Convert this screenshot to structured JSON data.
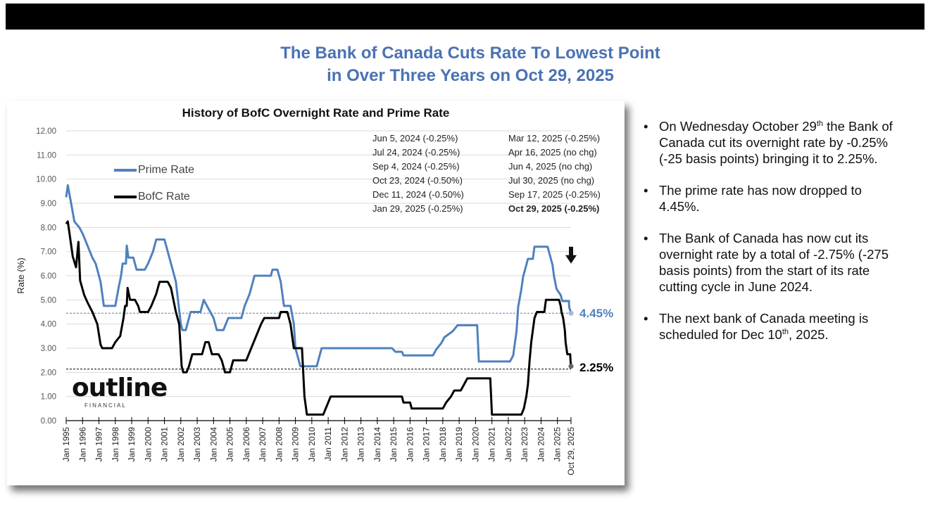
{
  "header": {
    "title_line1": "The Bank of Canada Cuts Rate To Lowest Point",
    "title_line2": "in Over Three Years on Oct 29, 2025"
  },
  "colors": {
    "title": "#4a72b5",
    "prime": "#4f81bd",
    "bofc": "#000000"
  },
  "logo": {
    "word": "outline",
    "sub": "FINANCIAL"
  },
  "annotations": {
    "left": [
      "Jun 5, 2024 (-0.25%)",
      "Jul 24, 2024 (-0.25%)",
      "Sep 4, 2024 (-0.25%)",
      "Oct 23, 2024 (-0.50%)",
      "Dec 11, 2024 (-0.50%)",
      "Jan 29, 2025 (-0.25%)"
    ],
    "right": [
      "Mar 12, 2025 (-0.25%)",
      "Apr 16, 2025 (no chg)",
      "Jun 4, 2025 (no chg)",
      "Jul 30, 2025 (no chg)",
      "Sep 17, 2025 (-0.25%)",
      "Oct 29, 2025 (-0.25%)"
    ]
  },
  "bullets": [
    {
      "pre": "On Wednesday October 29",
      "sup": "th",
      "post": " the Bank of Canada cut its overnight rate by -0.25% (-25 basis points) bringing it to 2.25%."
    },
    {
      "pre": "The prime rate has now dropped to 4.45%."
    },
    {
      "pre": "The Bank of Canada has now cut its overnight rate by a total of -2.75% (-275 basis points) from the start of its rate cutting cycle in June 2024."
    },
    {
      "pre": "The next bank of Canada meeting is scheduled for Dec 10",
      "sup": "th",
      "post": ", 2025."
    }
  ],
  "chart_data": {
    "type": "line",
    "title": "History of BofC Overnight Rate and Prime Rate",
    "ylabel": "Rate (%)",
    "xlabel": "",
    "ylim": [
      0,
      12
    ],
    "xlim": [
      1995.0,
      2025.83
    ],
    "grid": true,
    "legend": "top-left",
    "y_ticks": [
      "0.00",
      "1.00",
      "2.00",
      "3.00",
      "4.00",
      "5.00",
      "6.00",
      "7.00",
      "8.00",
      "9.00",
      "10.00",
      "11.00",
      "12.00"
    ],
    "x_ticks": [
      "Jan 1995",
      "Jan 1996",
      "Jan 1997",
      "Jan 1998",
      "Jan 1999",
      "Jan 2000",
      "Jan 2001",
      "Jan 2002",
      "Jan 2003",
      "Jan 2004",
      "Jan 2005",
      "Jan 2006",
      "Jan 2007",
      "Jan 2008",
      "Jan 2009",
      "Jan 2010",
      "Jan 2011",
      "Jan 2012",
      "Jan 2013",
      "Jan 2014",
      "Jan 2015",
      "Jan 2016",
      "Jan 2017",
      "Jan 2018",
      "Jan 2019",
      "Jan 2020",
      "Jan 2021",
      "Jan 2022",
      "Jan 2023",
      "Jan 2024",
      "Jan 2025",
      "Oct 29, 2025"
    ],
    "reference_lines": [
      {
        "value": 4.45,
        "label": "4.45%",
        "series": "Prime Rate"
      },
      {
        "value": 2.25,
        "label": "2.25%",
        "series": "BofC Rate"
      }
    ],
    "series": [
      {
        "name": "Prime Rate",
        "points": [
          [
            1995.0,
            9.25
          ],
          [
            1995.1,
            9.75
          ],
          [
            1995.3,
            9.0
          ],
          [
            1995.5,
            8.25
          ],
          [
            1995.8,
            8.0
          ],
          [
            1996.0,
            7.75
          ],
          [
            1996.3,
            7.25
          ],
          [
            1996.6,
            6.75
          ],
          [
            1996.8,
            6.5
          ],
          [
            1997.0,
            6.0
          ],
          [
            1997.1,
            5.75
          ],
          [
            1997.3,
            4.75
          ],
          [
            1998.0,
            4.75
          ],
          [
            1998.2,
            5.5
          ],
          [
            1998.35,
            6.0
          ],
          [
            1998.45,
            6.5
          ],
          [
            1998.65,
            6.5
          ],
          [
            1998.7,
            7.25
          ],
          [
            1998.8,
            6.75
          ],
          [
            1999.1,
            6.75
          ],
          [
            1999.3,
            6.25
          ],
          [
            1999.8,
            6.25
          ],
          [
            2000.0,
            6.5
          ],
          [
            2000.3,
            7.0
          ],
          [
            2000.5,
            7.5
          ],
          [
            2001.0,
            7.5
          ],
          [
            2001.1,
            7.25
          ],
          [
            2001.5,
            6.25
          ],
          [
            2001.7,
            5.75
          ],
          [
            2002.0,
            4.0
          ],
          [
            2002.1,
            3.75
          ],
          [
            2002.3,
            3.75
          ],
          [
            2002.4,
            4.0
          ],
          [
            2002.6,
            4.5
          ],
          [
            2003.2,
            4.5
          ],
          [
            2003.4,
            5.0
          ],
          [
            2003.6,
            4.75
          ],
          [
            2003.8,
            4.5
          ],
          [
            2004.0,
            4.25
          ],
          [
            2004.2,
            3.75
          ],
          [
            2004.6,
            3.75
          ],
          [
            2004.9,
            4.25
          ],
          [
            2005.7,
            4.25
          ],
          [
            2005.9,
            4.75
          ],
          [
            2006.2,
            5.25
          ],
          [
            2006.5,
            6.0
          ],
          [
            2007.5,
            6.0
          ],
          [
            2007.6,
            6.25
          ],
          [
            2007.9,
            6.25
          ],
          [
            2008.1,
            5.75
          ],
          [
            2008.3,
            4.75
          ],
          [
            2008.7,
            4.75
          ],
          [
            2008.9,
            4.0
          ],
          [
            2009.0,
            3.0
          ],
          [
            2009.3,
            2.25
          ],
          [
            2010.3,
            2.25
          ],
          [
            2010.6,
            3.0
          ],
          [
            2014.9,
            3.0
          ],
          [
            2015.1,
            2.85
          ],
          [
            2015.5,
            2.85
          ],
          [
            2015.6,
            2.7
          ],
          [
            2017.4,
            2.7
          ],
          [
            2017.6,
            2.95
          ],
          [
            2017.9,
            3.2
          ],
          [
            2018.1,
            3.45
          ],
          [
            2018.6,
            3.7
          ],
          [
            2018.9,
            3.95
          ],
          [
            2020.1,
            3.95
          ],
          [
            2020.2,
            2.45
          ],
          [
            2022.1,
            2.45
          ],
          [
            2022.3,
            2.7
          ],
          [
            2022.4,
            3.2
          ],
          [
            2022.5,
            3.7
          ],
          [
            2022.6,
            4.7
          ],
          [
            2022.8,
            5.45
          ],
          [
            2022.9,
            5.95
          ],
          [
            2023.1,
            6.45
          ],
          [
            2023.2,
            6.7
          ],
          [
            2023.5,
            6.7
          ],
          [
            2023.6,
            7.2
          ],
          [
            2024.4,
            7.2
          ],
          [
            2024.5,
            6.95
          ],
          [
            2024.6,
            6.7
          ],
          [
            2024.7,
            6.45
          ],
          [
            2024.8,
            5.95
          ],
          [
            2024.95,
            5.45
          ],
          [
            2025.2,
            5.2
          ],
          [
            2025.3,
            4.95
          ],
          [
            2025.7,
            4.95
          ],
          [
            2025.72,
            4.7
          ],
          [
            2025.83,
            4.45
          ]
        ]
      },
      {
        "name": "BofC Rate",
        "points": [
          [
            1995.0,
            8.15
          ],
          [
            1995.1,
            8.25
          ],
          [
            1995.4,
            6.8
          ],
          [
            1995.6,
            6.35
          ],
          [
            1995.75,
            7.4
          ],
          [
            1995.85,
            5.8
          ],
          [
            1996.1,
            5.2
          ],
          [
            1996.3,
            4.9
          ],
          [
            1996.6,
            4.5
          ],
          [
            1996.9,
            4.0
          ],
          [
            1997.1,
            3.15
          ],
          [
            1997.2,
            3.0
          ],
          [
            1997.8,
            3.0
          ],
          [
            1998.0,
            3.25
          ],
          [
            1998.3,
            3.5
          ],
          [
            1998.5,
            4.25
          ],
          [
            1998.6,
            4.75
          ],
          [
            1998.7,
            4.75
          ],
          [
            1998.75,
            5.5
          ],
          [
            1998.9,
            5.0
          ],
          [
            1999.2,
            5.0
          ],
          [
            1999.4,
            4.75
          ],
          [
            1999.5,
            4.5
          ],
          [
            2000.0,
            4.5
          ],
          [
            2000.2,
            4.75
          ],
          [
            2000.5,
            5.25
          ],
          [
            2000.7,
            5.75
          ],
          [
            2001.2,
            5.75
          ],
          [
            2001.4,
            5.5
          ],
          [
            2001.7,
            4.5
          ],
          [
            2001.9,
            4.0
          ],
          [
            2002.05,
            2.25
          ],
          [
            2002.15,
            2.0
          ],
          [
            2002.35,
            2.0
          ],
          [
            2002.5,
            2.25
          ],
          [
            2002.7,
            2.75
          ],
          [
            2003.3,
            2.75
          ],
          [
            2003.5,
            3.25
          ],
          [
            2003.7,
            3.25
          ],
          [
            2003.9,
            2.75
          ],
          [
            2004.3,
            2.75
          ],
          [
            2004.5,
            2.5
          ],
          [
            2004.7,
            2.0
          ],
          [
            2005.0,
            2.0
          ],
          [
            2005.2,
            2.5
          ],
          [
            2006.0,
            2.5
          ],
          [
            2006.3,
            3.0
          ],
          [
            2006.6,
            3.5
          ],
          [
            2006.9,
            4.0
          ],
          [
            2007.1,
            4.25
          ],
          [
            2008.0,
            4.25
          ],
          [
            2008.1,
            4.5
          ],
          [
            2008.5,
            4.5
          ],
          [
            2008.7,
            4.0
          ],
          [
            2008.9,
            3.0
          ],
          [
            2009.4,
            3.0
          ],
          [
            2009.55,
            1.0
          ],
          [
            2009.7,
            0.25
          ],
          [
            2010.7,
            0.25
          ],
          [
            2010.85,
            0.5
          ],
          [
            2011.0,
            0.75
          ],
          [
            2011.15,
            1.0
          ],
          [
            2015.5,
            1.0
          ],
          [
            2015.6,
            0.75
          ],
          [
            2016.0,
            0.75
          ],
          [
            2016.1,
            0.5
          ],
          [
            2018.0,
            0.5
          ],
          [
            2018.2,
            0.75
          ],
          [
            2018.5,
            1.0
          ],
          [
            2018.7,
            1.25
          ],
          [
            2019.1,
            1.25
          ],
          [
            2019.3,
            1.5
          ],
          [
            2019.5,
            1.75
          ],
          [
            2020.9,
            1.75
          ],
          [
            2021.0,
            0.25
          ],
          [
            2022.8,
            0.25
          ],
          [
            2022.95,
            0.5
          ],
          [
            2023.1,
            1.0
          ],
          [
            2023.2,
            1.5
          ],
          [
            2023.3,
            2.5
          ],
          [
            2023.4,
            3.25
          ],
          [
            2023.5,
            3.75
          ],
          [
            2023.6,
            4.25
          ],
          [
            2023.75,
            4.5
          ],
          [
            2024.2,
            4.5
          ],
          [
            2024.3,
            5.0
          ],
          [
            2025.1,
            5.0
          ],
          [
            2025.2,
            4.75
          ],
          [
            2025.25,
            4.5
          ],
          [
            2025.35,
            4.25
          ],
          [
            2025.45,
            3.75
          ],
          [
            2025.5,
            3.25
          ],
          [
            2025.55,
            3.0
          ],
          [
            2025.6,
            2.75
          ],
          [
            2025.78,
            2.75
          ],
          [
            2025.8,
            2.5
          ],
          [
            2025.83,
            2.25
          ]
        ]
      }
    ]
  }
}
